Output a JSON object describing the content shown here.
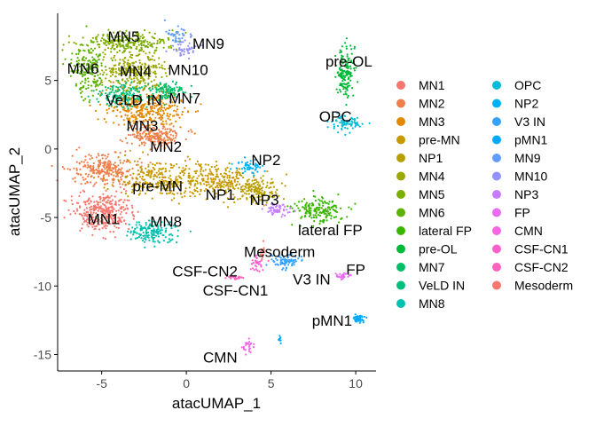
{
  "chart_data": {
    "type": "scatter",
    "xlabel": "atacUMAP_1",
    "ylabel": "atacUMAP_2",
    "xlim": [
      -7.6,
      11.2
    ],
    "ylim": [
      -16.2,
      9.9
    ],
    "x_ticks": [
      -5,
      0,
      5,
      10
    ],
    "y_ticks": [
      -15,
      -10,
      -5,
      0,
      5
    ],
    "x_tick_labels": [
      "-5",
      "0",
      "5",
      "10"
    ],
    "y_tick_labels": [
      "-15",
      "-10",
      "-5",
      "0",
      "5"
    ],
    "grid": false,
    "legend_position": "right",
    "series": [
      {
        "name": "MN1",
        "color": "#F8766D",
        "clusters": [
          {
            "cx": -5.0,
            "cy": -4.6,
            "sx": 1.1,
            "sy": 1.0,
            "n": 320
          }
        ]
      },
      {
        "name": "MN2",
        "color": "#EE7F4D",
        "clusters": [
          {
            "cx": -2.0,
            "cy": 1.0,
            "sx": 1.2,
            "sy": 0.5,
            "n": 200
          },
          {
            "cx": -4.8,
            "cy": -1.5,
            "sx": 1.3,
            "sy": 0.8,
            "n": 260
          }
        ]
      },
      {
        "name": "MN3",
        "color": "#E38900",
        "clusters": [
          {
            "cx": -2.4,
            "cy": 2.9,
            "sx": 1.5,
            "sy": 1.0,
            "n": 330
          }
        ]
      },
      {
        "name": "pre-MN",
        "color": "#C69900",
        "clusters": [
          {
            "cx": -1.5,
            "cy": -2.2,
            "sx": 1.8,
            "sy": 0.9,
            "n": 300
          },
          {
            "cx": 2.0,
            "cy": -2.3,
            "sx": 1.3,
            "sy": 0.8,
            "n": 200
          }
        ]
      },
      {
        "name": "NP1",
        "color": "#B79F00",
        "clusters": [
          {
            "cx": 4.2,
            "cy": -3.0,
            "sx": 1.1,
            "sy": 0.7,
            "n": 150
          }
        ]
      },
      {
        "name": "MN4",
        "color": "#9CA700",
        "clusters": [
          {
            "cx": -3.2,
            "cy": 5.7,
            "sx": 1.3,
            "sy": 1.1,
            "n": 300
          }
        ]
      },
      {
        "name": "MN5",
        "color": "#7CAE00",
        "clusters": [
          {
            "cx": -3.8,
            "cy": 7.8,
            "sx": 1.8,
            "sy": 0.5,
            "n": 240
          }
        ]
      },
      {
        "name": "MN6",
        "color": "#5BB300",
        "clusters": [
          {
            "cx": -5.8,
            "cy": 5.8,
            "sx": 0.7,
            "sy": 1.2,
            "n": 160
          }
        ]
      },
      {
        "name": "lateral FP",
        "color": "#39B600",
        "clusters": [
          {
            "cx": 7.8,
            "cy": -4.5,
            "sx": 0.9,
            "sy": 0.6,
            "n": 170
          }
        ]
      },
      {
        "name": "pre-OL",
        "color": "#00BA38",
        "clusters": [
          {
            "cx": 9.4,
            "cy": 5.6,
            "sx": 0.35,
            "sy": 1.3,
            "n": 150
          }
        ]
      },
      {
        "name": "MN7",
        "color": "#00BE67",
        "clusters": [
          {
            "cx": -1.1,
            "cy": 4.2,
            "sx": 0.7,
            "sy": 0.5,
            "n": 110
          }
        ]
      },
      {
        "name": "VeLD IN",
        "color": "#00BF7D",
        "clusters": [
          {
            "cx": -3.9,
            "cy": 4.0,
            "sx": 0.9,
            "sy": 0.6,
            "n": 130
          }
        ]
      },
      {
        "name": "MN8",
        "color": "#00C0AF",
        "clusters": [
          {
            "cx": -2.1,
            "cy": -6.1,
            "sx": 0.9,
            "sy": 0.5,
            "n": 150
          }
        ]
      },
      {
        "name": "OPC",
        "color": "#00BCD8",
        "clusters": [
          {
            "cx": 9.5,
            "cy": 1.9,
            "sx": 0.7,
            "sy": 0.4,
            "n": 80
          }
        ]
      },
      {
        "name": "NP2",
        "color": "#00B0F6",
        "clusters": [
          {
            "cx": 3.7,
            "cy": -1.3,
            "sx": 0.5,
            "sy": 0.35,
            "n": 55
          }
        ]
      },
      {
        "name": "V3 IN",
        "color": "#35A2FF",
        "clusters": [
          {
            "cx": 5.9,
            "cy": -8.2,
            "sx": 0.55,
            "sy": 0.35,
            "n": 75
          }
        ]
      },
      {
        "name": "pMN1",
        "color": "#00A9FF",
        "clusters": [
          {
            "cx": 10.2,
            "cy": -12.4,
            "sx": 0.22,
            "sy": 0.22,
            "n": 45
          },
          {
            "cx": 5.5,
            "cy": -13.9,
            "sx": 0.1,
            "sy": 0.2,
            "n": 10
          }
        ]
      },
      {
        "name": "MN9",
        "color": "#619CFF",
        "clusters": [
          {
            "cx": -0.5,
            "cy": 8.3,
            "sx": 0.6,
            "sy": 0.4,
            "n": 45
          }
        ]
      },
      {
        "name": "MN10",
        "color": "#9590FF",
        "clusters": [
          {
            "cx": -0.1,
            "cy": 7.3,
            "sx": 0.5,
            "sy": 0.4,
            "n": 40
          }
        ]
      },
      {
        "name": "NP3",
        "color": "#C77CFF",
        "clusters": [
          {
            "cx": 5.4,
            "cy": -4.4,
            "sx": 0.5,
            "sy": 0.3,
            "n": 50
          }
        ]
      },
      {
        "name": "FP",
        "color": "#E76BF3",
        "clusters": [
          {
            "cx": 9.2,
            "cy": -9.3,
            "sx": 0.35,
            "sy": 0.15,
            "n": 30
          }
        ]
      },
      {
        "name": "CMN",
        "color": "#F564E3",
        "clusters": [
          {
            "cx": 3.6,
            "cy": -14.4,
            "sx": 0.3,
            "sy": 0.4,
            "n": 25
          }
        ]
      },
      {
        "name": "CSF-CN1",
        "color": "#FF61CC",
        "clusters": [
          {
            "cx": 4.2,
            "cy": -8.3,
            "sx": 0.3,
            "sy": 0.35,
            "n": 30
          }
        ]
      },
      {
        "name": "CSF-CN2",
        "color": "#FF62BC",
        "clusters": [
          {
            "cx": 2.8,
            "cy": -9.4,
            "sx": 0.35,
            "sy": 0.12,
            "n": 25
          }
        ]
      },
      {
        "name": "Mesoderm",
        "color": "#F8766D",
        "clusters": [
          {
            "cx": 4.5,
            "cy": -7.6,
            "sx": 0.15,
            "sy": 0.3,
            "n": 15
          }
        ]
      }
    ],
    "annotations": [
      {
        "text": "MN5",
        "x": -3.7,
        "y": 8.2
      },
      {
        "text": "MN9",
        "x": 1.3,
        "y": 7.7
      },
      {
        "text": "MN6",
        "x": -6.1,
        "y": 5.9
      },
      {
        "text": "MN4",
        "x": -3.0,
        "y": 5.7
      },
      {
        "text": "MN10",
        "x": 0.1,
        "y": 5.8
      },
      {
        "text": "VeLD IN",
        "x": -3.1,
        "y": 3.6
      },
      {
        "text": "MN7",
        "x": -0.1,
        "y": 3.7
      },
      {
        "text": "MN3",
        "x": -2.6,
        "y": 1.7
      },
      {
        "text": "MN2",
        "x": -1.2,
        "y": 0.2
      },
      {
        "text": "pre-OL",
        "x": 9.6,
        "y": 6.4
      },
      {
        "text": "OPC",
        "x": 8.8,
        "y": 2.4
      },
      {
        "text": "NP2",
        "x": 4.7,
        "y": -0.8
      },
      {
        "text": "pre-MN",
        "x": -1.7,
        "y": -2.7
      },
      {
        "text": "NP1",
        "x": 2.0,
        "y": -3.3
      },
      {
        "text": "NP3",
        "x": 4.6,
        "y": -3.7
      },
      {
        "text": "MN1",
        "x": -4.9,
        "y": -5.1
      },
      {
        "text": "MN8",
        "x": -1.2,
        "y": -5.3
      },
      {
        "text": "lateral FP",
        "x": 8.5,
        "y": -5.9
      },
      {
        "text": "Mesoderm",
        "x": 5.5,
        "y": -7.5
      },
      {
        "text": "FP",
        "x": 10.0,
        "y": -8.8
      },
      {
        "text": "CSF-CN2",
        "x": 1.1,
        "y": -8.9
      },
      {
        "text": "V3 IN",
        "x": 7.4,
        "y": -9.5
      },
      {
        "text": "CSF-CN1",
        "x": 2.9,
        "y": -10.3
      },
      {
        "text": "pMN1",
        "x": 8.6,
        "y": -12.5
      },
      {
        "text": "CMN",
        "x": 2.0,
        "y": -15.2
      }
    ]
  }
}
